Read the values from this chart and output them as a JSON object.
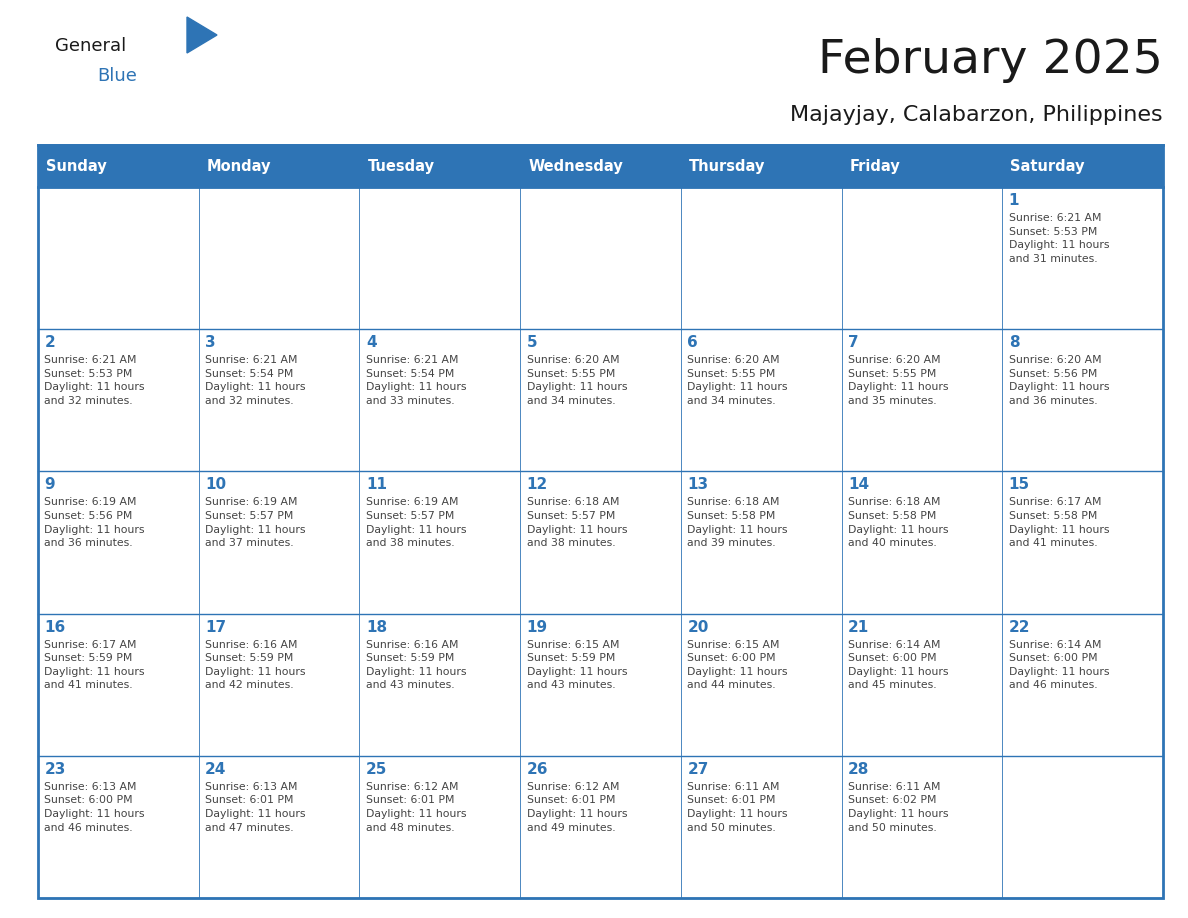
{
  "title": "February 2025",
  "subtitle": "Majayjay, Calabarzon, Philippines",
  "header_bg": "#2E74B5",
  "header_text_color": "#FFFFFF",
  "cell_bg": "#FFFFFF",
  "border_color": "#2E74B5",
  "day_number_color": "#2E74B5",
  "cell_text_color": "#444444",
  "days_of_week": [
    "Sunday",
    "Monday",
    "Tuesday",
    "Wednesday",
    "Thursday",
    "Friday",
    "Saturday"
  ],
  "calendar_data": [
    [
      "",
      "",
      "",
      "",
      "",
      "",
      "1\nSunrise: 6:21 AM\nSunset: 5:53 PM\nDaylight: 11 hours\nand 31 minutes."
    ],
    [
      "2\nSunrise: 6:21 AM\nSunset: 5:53 PM\nDaylight: 11 hours\nand 32 minutes.",
      "3\nSunrise: 6:21 AM\nSunset: 5:54 PM\nDaylight: 11 hours\nand 32 minutes.",
      "4\nSunrise: 6:21 AM\nSunset: 5:54 PM\nDaylight: 11 hours\nand 33 minutes.",
      "5\nSunrise: 6:20 AM\nSunset: 5:55 PM\nDaylight: 11 hours\nand 34 minutes.",
      "6\nSunrise: 6:20 AM\nSunset: 5:55 PM\nDaylight: 11 hours\nand 34 minutes.",
      "7\nSunrise: 6:20 AM\nSunset: 5:55 PM\nDaylight: 11 hours\nand 35 minutes.",
      "8\nSunrise: 6:20 AM\nSunset: 5:56 PM\nDaylight: 11 hours\nand 36 minutes."
    ],
    [
      "9\nSunrise: 6:19 AM\nSunset: 5:56 PM\nDaylight: 11 hours\nand 36 minutes.",
      "10\nSunrise: 6:19 AM\nSunset: 5:57 PM\nDaylight: 11 hours\nand 37 minutes.",
      "11\nSunrise: 6:19 AM\nSunset: 5:57 PM\nDaylight: 11 hours\nand 38 minutes.",
      "12\nSunrise: 6:18 AM\nSunset: 5:57 PM\nDaylight: 11 hours\nand 38 minutes.",
      "13\nSunrise: 6:18 AM\nSunset: 5:58 PM\nDaylight: 11 hours\nand 39 minutes.",
      "14\nSunrise: 6:18 AM\nSunset: 5:58 PM\nDaylight: 11 hours\nand 40 minutes.",
      "15\nSunrise: 6:17 AM\nSunset: 5:58 PM\nDaylight: 11 hours\nand 41 minutes."
    ],
    [
      "16\nSunrise: 6:17 AM\nSunset: 5:59 PM\nDaylight: 11 hours\nand 41 minutes.",
      "17\nSunrise: 6:16 AM\nSunset: 5:59 PM\nDaylight: 11 hours\nand 42 minutes.",
      "18\nSunrise: 6:16 AM\nSunset: 5:59 PM\nDaylight: 11 hours\nand 43 minutes.",
      "19\nSunrise: 6:15 AM\nSunset: 5:59 PM\nDaylight: 11 hours\nand 43 minutes.",
      "20\nSunrise: 6:15 AM\nSunset: 6:00 PM\nDaylight: 11 hours\nand 44 minutes.",
      "21\nSunrise: 6:14 AM\nSunset: 6:00 PM\nDaylight: 11 hours\nand 45 minutes.",
      "22\nSunrise: 6:14 AM\nSunset: 6:00 PM\nDaylight: 11 hours\nand 46 minutes."
    ],
    [
      "23\nSunrise: 6:13 AM\nSunset: 6:00 PM\nDaylight: 11 hours\nand 46 minutes.",
      "24\nSunrise: 6:13 AM\nSunset: 6:01 PM\nDaylight: 11 hours\nand 47 minutes.",
      "25\nSunrise: 6:12 AM\nSunset: 6:01 PM\nDaylight: 11 hours\nand 48 minutes.",
      "26\nSunrise: 6:12 AM\nSunset: 6:01 PM\nDaylight: 11 hours\nand 49 minutes.",
      "27\nSunrise: 6:11 AM\nSunset: 6:01 PM\nDaylight: 11 hours\nand 50 minutes.",
      "28\nSunrise: 6:11 AM\nSunset: 6:02 PM\nDaylight: 11 hours\nand 50 minutes.",
      ""
    ]
  ],
  "logo_text_general": "General",
  "logo_text_blue": "Blue",
  "logo_triangle_color": "#2E74B5",
  "fig_width": 11.88,
  "fig_height": 9.18,
  "dpi": 100
}
